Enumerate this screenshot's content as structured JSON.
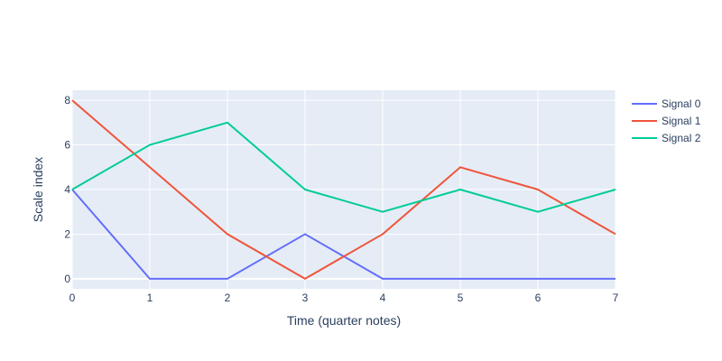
{
  "chart_data": {
    "type": "line",
    "title": "",
    "xlabel": "Time (quarter notes)",
    "ylabel": "Scale index",
    "x": [
      0,
      1,
      2,
      3,
      4,
      5,
      6,
      7
    ],
    "xlim": [
      0,
      7
    ],
    "ylim": [
      -0.45,
      8.45
    ],
    "xticks": [
      0,
      1,
      2,
      3,
      4,
      5,
      6,
      7
    ],
    "yticks": [
      0,
      2,
      4,
      6,
      8
    ],
    "grid": true,
    "legend_position": "top-right",
    "plot_background": "#e5ecf6",
    "series": [
      {
        "name": "Signal 0",
        "color": "#636efa",
        "values": [
          4,
          0,
          0,
          2,
          0,
          0,
          0,
          0
        ]
      },
      {
        "name": "Signal 1",
        "color": "#ef553b",
        "values": [
          8,
          5,
          2,
          0,
          2,
          5,
          4,
          2
        ]
      },
      {
        "name": "Signal 2",
        "color": "#00cc96",
        "values": [
          4,
          6,
          7,
          4,
          3,
          4,
          3,
          4
        ]
      }
    ]
  }
}
